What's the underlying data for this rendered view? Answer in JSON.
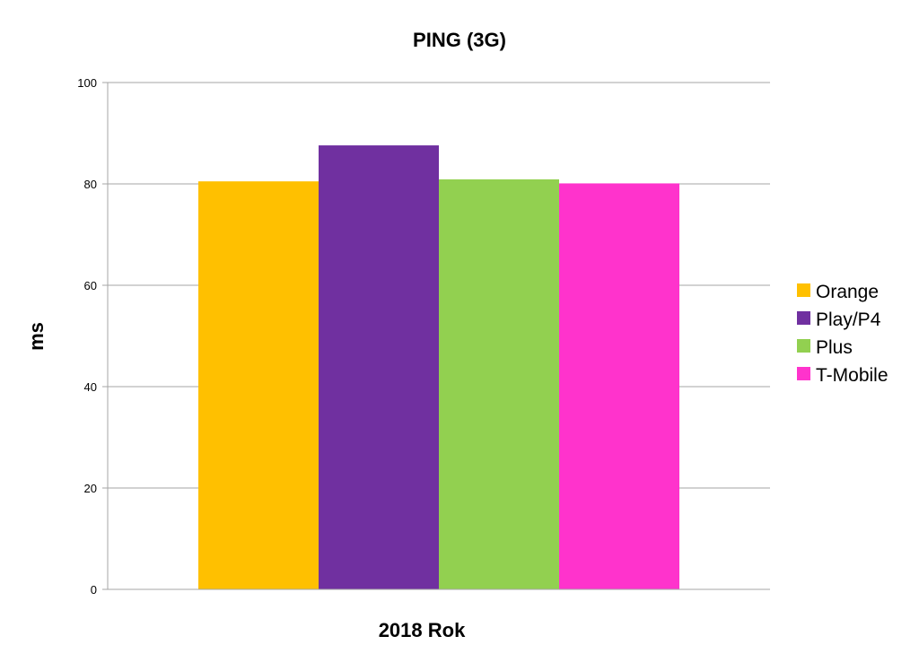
{
  "chart_data": {
    "type": "bar",
    "title": "PING (3G)",
    "xlabel": "2018 Rok",
    "ylabel": "ms",
    "categories": [
      "2018 Rok"
    ],
    "ylim": [
      0,
      100
    ],
    "yticks": [
      0,
      20,
      40,
      60,
      80,
      100
    ],
    "grid": true,
    "legend_position": "right",
    "series": [
      {
        "name": "Orange",
        "values": [
          80.5
        ],
        "color": "#FFC000"
      },
      {
        "name": "Play/P4",
        "values": [
          87.6
        ],
        "color": "#7030A0"
      },
      {
        "name": "Plus",
        "values": [
          80.9
        ],
        "color": "#92D050"
      },
      {
        "name": "T-Mobile",
        "values": [
          80.1
        ],
        "color": "#FF33CC"
      }
    ]
  }
}
